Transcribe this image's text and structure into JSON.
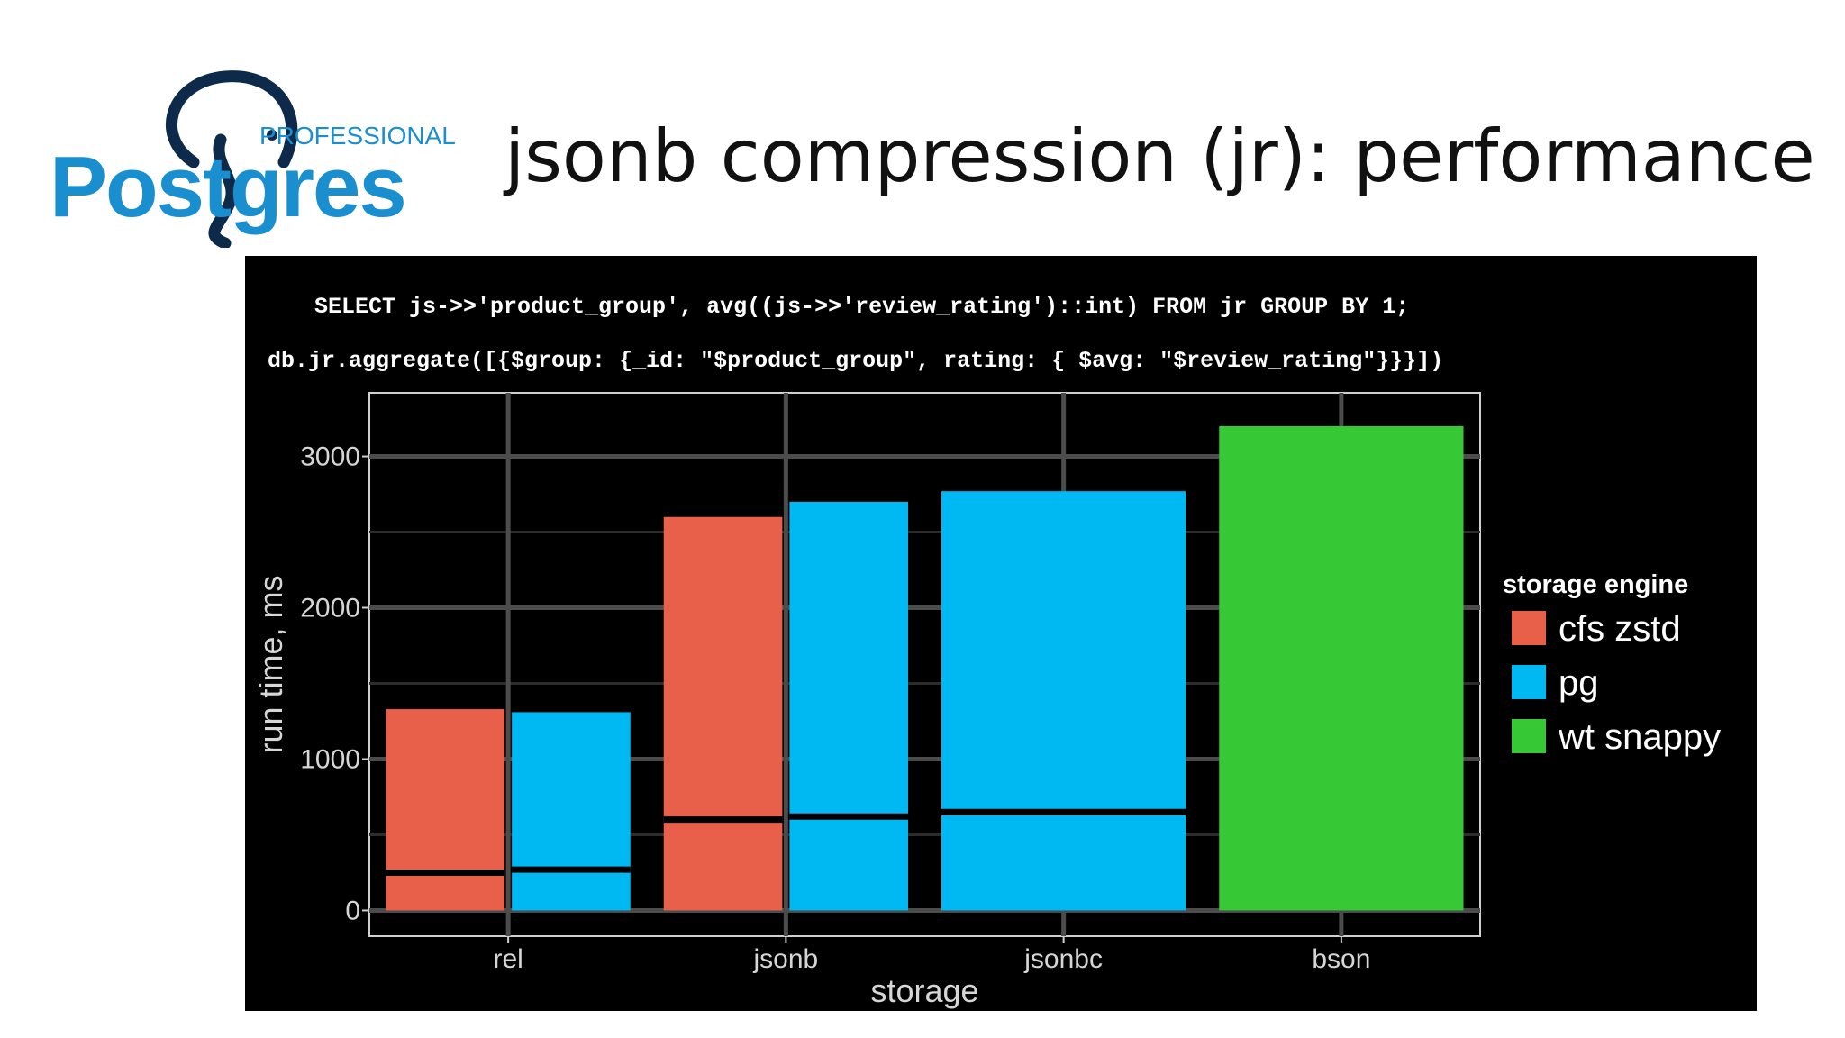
{
  "logo": {
    "brand_word": "Postgres",
    "brand_tag": "PROFESSIONAL",
    "brand_color": "#1a8fd0",
    "mascot_color": "#0d2a4a",
    "icon": "elephant-logo-icon"
  },
  "slide": {
    "title": "jsonb compression (jr): performance"
  },
  "code": {
    "sql": "SELECT js->>'product_group', avg((js->>'review_rating')::int) FROM jr GROUP BY 1;",
    "mongo": "db.jr.aggregate([{$group: {_id: \"$product_group\", rating: { $avg: \"$review_rating\"}}}])"
  },
  "chart_data": {
    "type": "bar",
    "xlabel": "storage",
    "ylabel": "run time, ms",
    "categories": [
      "rel",
      "jsonb",
      "jsonbc",
      "bson"
    ],
    "yticks": [
      0,
      1000,
      2000,
      3000
    ],
    "ylim": [
      -170,
      3420
    ],
    "grid": true,
    "legend_title": "storage engine",
    "legend_position": "right",
    "series": [
      {
        "name": "cfs zstd",
        "color": "#e8604a",
        "lower": [
          0,
          0,
          null,
          null
        ],
        "upper": [
          1330,
          2600,
          null,
          null
        ],
        "split": [
          250,
          600,
          null,
          null
        ]
      },
      {
        "name": "pg",
        "color": "#00b9f2",
        "lower": [
          0,
          0,
          0,
          null
        ],
        "upper": [
          1310,
          2700,
          2770,
          null
        ],
        "split": [
          270,
          620,
          650,
          null
        ]
      },
      {
        "name": "wt snappy",
        "color": "#36c935",
        "lower": [
          null,
          null,
          null,
          0
        ],
        "upper": [
          null,
          null,
          null,
          3200
        ],
        "split": [
          null,
          null,
          null,
          null
        ]
      }
    ]
  }
}
